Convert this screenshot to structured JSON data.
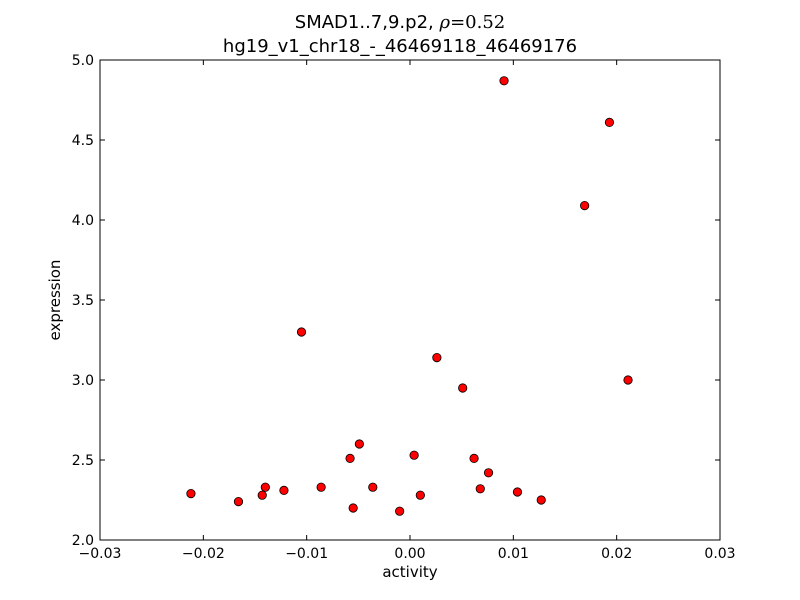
{
  "chart_data": {
    "type": "scatter",
    "title_prefix": "SMAD1..7,9.p2, ",
    "title_rho_symbol": "ρ",
    "title_rho_value": "=0.52",
    "title_line2": "hg19_v1_chr18_-_46469118_46469176",
    "xlabel": "activity",
    "ylabel": "expression",
    "xlim": [
      -0.03,
      0.03
    ],
    "ylim": [
      2.0,
      5.0
    ],
    "xticks": [
      -0.03,
      -0.02,
      -0.01,
      0.0,
      0.01,
      0.02,
      0.03
    ],
    "xtick_labels": [
      "−0.03",
      "−0.02",
      "−0.01",
      "0.00",
      "0.01",
      "0.02",
      "0.03"
    ],
    "yticks": [
      2.0,
      2.5,
      3.0,
      3.5,
      4.0,
      4.5,
      5.0
    ],
    "ytick_labels": [
      "2.0",
      "2.5",
      "3.0",
      "3.5",
      "4.0",
      "4.5",
      "5.0"
    ],
    "grid": false,
    "marker_color": "#ff0000",
    "marker_edge": "#000000",
    "points": [
      {
        "x": -0.0212,
        "y": 2.29
      },
      {
        "x": -0.0166,
        "y": 2.24
      },
      {
        "x": -0.0143,
        "y": 2.28
      },
      {
        "x": -0.014,
        "y": 2.33
      },
      {
        "x": -0.0122,
        "y": 2.31
      },
      {
        "x": -0.0105,
        "y": 3.3
      },
      {
        "x": -0.0086,
        "y": 2.33
      },
      {
        "x": -0.0058,
        "y": 2.51
      },
      {
        "x": -0.0055,
        "y": 2.2
      },
      {
        "x": -0.0049,
        "y": 2.6
      },
      {
        "x": -0.0036,
        "y": 2.33
      },
      {
        "x": -0.001,
        "y": 2.18
      },
      {
        "x": 0.0004,
        "y": 2.53
      },
      {
        "x": 0.001,
        "y": 2.28
      },
      {
        "x": 0.0026,
        "y": 3.14
      },
      {
        "x": 0.0051,
        "y": 2.95
      },
      {
        "x": 0.0062,
        "y": 2.51
      },
      {
        "x": 0.0068,
        "y": 2.32
      },
      {
        "x": 0.0076,
        "y": 2.42
      },
      {
        "x": 0.0091,
        "y": 4.87
      },
      {
        "x": 0.0104,
        "y": 2.3
      },
      {
        "x": 0.0127,
        "y": 2.25
      },
      {
        "x": 0.0169,
        "y": 4.09
      },
      {
        "x": 0.0193,
        "y": 4.61
      },
      {
        "x": 0.0211,
        "y": 3.0
      }
    ]
  }
}
